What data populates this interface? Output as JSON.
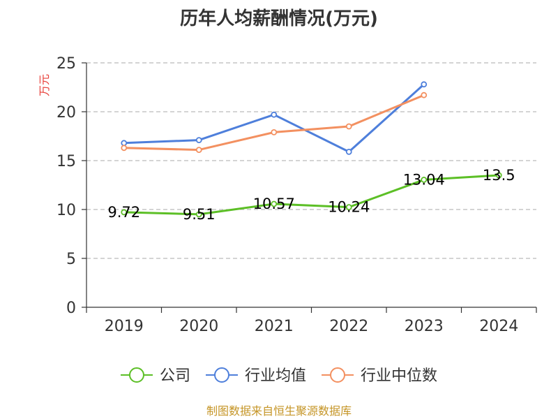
{
  "chart_data": {
    "type": "line",
    "title": "历年人均薪酬情况(万元)",
    "ylabel": "万元",
    "xlabel": "",
    "categories": [
      "2019",
      "2020",
      "2021",
      "2022",
      "2023",
      "2024"
    ],
    "ylim": [
      0,
      25
    ],
    "yticks": [
      "0",
      "5",
      "10",
      "15",
      "20",
      "25"
    ],
    "grid": true,
    "legend_position": "bottom",
    "series": [
      {
        "name": "公司",
        "color": "#5cbf26",
        "values": [
          9.72,
          9.51,
          10.57,
          10.24,
          13.04,
          13.5
        ],
        "labels": [
          "9.72",
          "9.51",
          "10.57",
          "10.24",
          "13.04",
          "13.5"
        ]
      },
      {
        "name": "行业均值",
        "color": "#4e7fdb",
        "values": [
          16.8,
          17.1,
          19.7,
          15.9,
          22.8,
          null
        ],
        "labels": []
      },
      {
        "name": "行业中位数",
        "color": "#f39060",
        "values": [
          16.3,
          16.1,
          17.9,
          18.5,
          21.7,
          null
        ],
        "labels": []
      }
    ],
    "source": "制图数据来自恒生聚源数据库",
    "colors": {
      "axis": "#333333",
      "grid": "#bbbbbb",
      "ylabel": "#e8403a",
      "source": "#c59526"
    }
  }
}
